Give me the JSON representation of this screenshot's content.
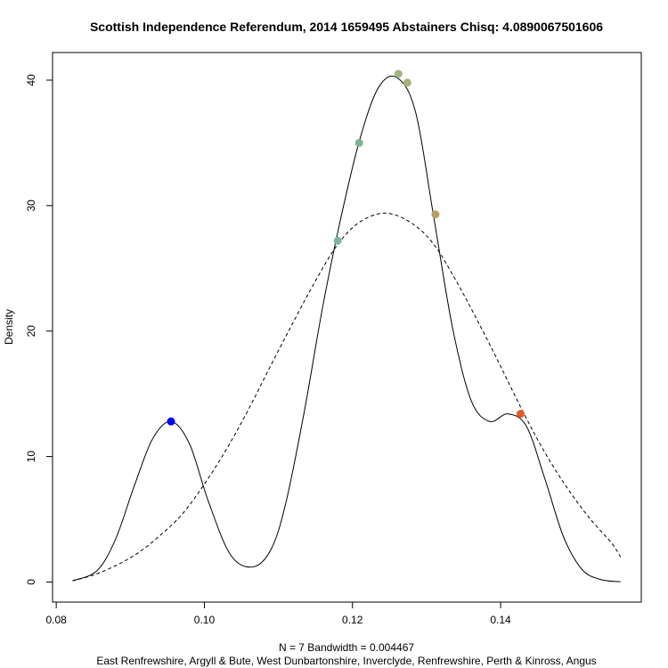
{
  "chart_data": {
    "type": "line",
    "title": "Scottish Independence Referendum, 2014 1659495 Abstainers Chisq: 4.0890067501606",
    "ylabel": "Density",
    "xlabel_line1": "N = 7   Bandwidth = 0.004467",
    "xlabel_line2": "East Renfrewshire, Argyll & Bute, West Dunbartonshire, Inverclyde, Renfrewshire, Perth & Kinross, Angus",
    "xlim": [
      0.0795,
      0.159
    ],
    "ylim": [
      -1.6,
      42.2
    ],
    "x_ticks": [
      0.08,
      0.1,
      0.12,
      0.14
    ],
    "x_tick_labels": [
      "0.08",
      "0.10",
      "0.12",
      "0.14"
    ],
    "y_ticks": [
      0,
      10,
      20,
      30,
      40
    ],
    "y_tick_labels": [
      "0",
      "10",
      "20",
      "30",
      "40"
    ],
    "grid": false,
    "series": [
      {
        "style": "solid",
        "x": [
          0.0822,
          0.0855,
          0.088,
          0.0905,
          0.093,
          0.0955,
          0.098,
          0.1005,
          0.1035,
          0.1065,
          0.109,
          0.111,
          0.1135,
          0.116,
          0.1185,
          0.121,
          0.1235,
          0.126,
          0.1285,
          0.131,
          0.1335,
          0.136,
          0.1385,
          0.141,
          0.1435,
          0.146,
          0.1485,
          0.151,
          0.1535,
          0.1562
        ],
        "y": [
          0.1,
          0.9,
          3.4,
          7.6,
          11.4,
          12.8,
          11.0,
          6.5,
          2.2,
          1.2,
          2.6,
          6.3,
          13.6,
          22.0,
          29.2,
          35.3,
          39.4,
          40.2,
          37.5,
          29.0,
          20.3,
          14.5,
          12.8,
          13.4,
          12.4,
          8.2,
          3.6,
          1.0,
          0.2,
          0.02
        ]
      },
      {
        "style": "dashed",
        "x": [
          0.0822,
          0.085,
          0.088,
          0.091,
          0.094,
          0.097,
          0.1,
          0.103,
          0.106,
          0.109,
          0.112,
          0.115,
          0.118,
          0.121,
          0.1245,
          0.128,
          0.131,
          0.134,
          0.137,
          0.14,
          0.143,
          0.146,
          0.149,
          0.152,
          0.155,
          0.1562
        ],
        "y": [
          0.1,
          0.55,
          1.3,
          2.3,
          3.7,
          5.4,
          7.8,
          10.6,
          13.8,
          17.3,
          20.7,
          24.0,
          26.9,
          28.7,
          29.4,
          28.6,
          26.9,
          24.0,
          20.7,
          17.2,
          13.6,
          10.3,
          7.5,
          5.1,
          3.1,
          2.0
        ]
      }
    ],
    "points": [
      {
        "x": 0.0955,
        "y": 12.8,
        "color": "#0000ff"
      },
      {
        "x": 0.118,
        "y": 27.2,
        "color": "#7fb3a3"
      },
      {
        "x": 0.1209,
        "y": 35.0,
        "color": "#7fb38f"
      },
      {
        "x": 0.1262,
        "y": 40.5,
        "color": "#9fb57f"
      },
      {
        "x": 0.1274,
        "y": 39.8,
        "color": "#a8b07a"
      },
      {
        "x": 0.1312,
        "y": 29.3,
        "color": "#b5a060"
      },
      {
        "x": 0.1427,
        "y": 13.4,
        "color": "#e05a2a"
      }
    ]
  }
}
